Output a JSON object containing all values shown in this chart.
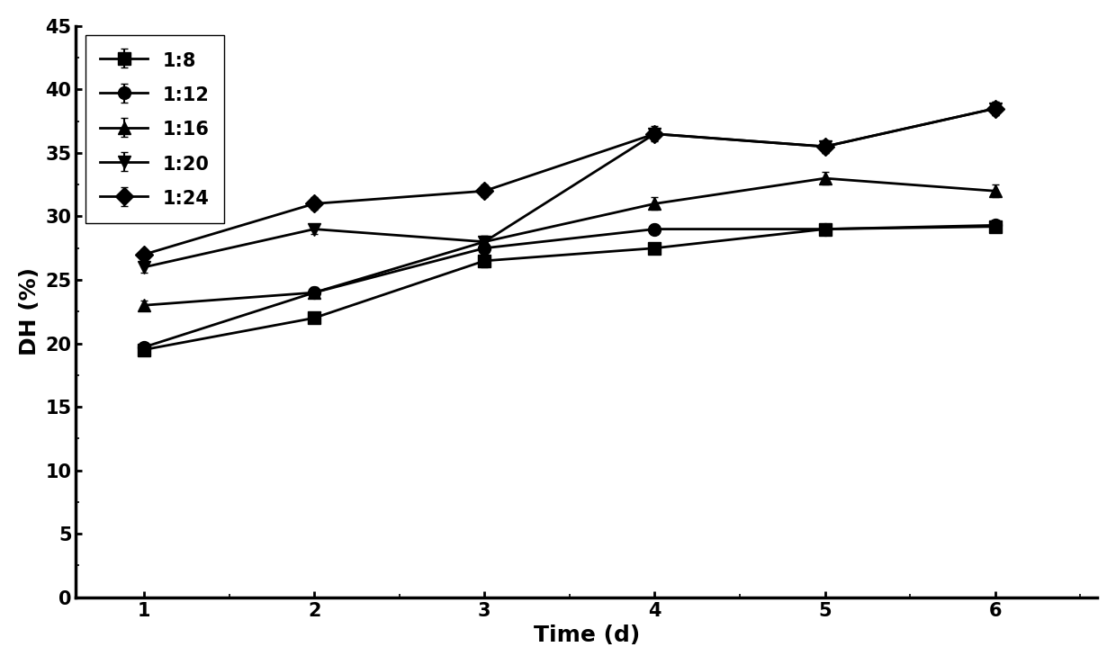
{
  "x": [
    1,
    2,
    3,
    4,
    5,
    6
  ],
  "series": [
    {
      "label": "1:8",
      "marker": "s",
      "values": [
        19.5,
        22.0,
        26.5,
        27.5,
        29.0,
        29.2
      ],
      "yerr": [
        0.3,
        0.4,
        0.5,
        0.4,
        0.4,
        0.4
      ]
    },
    {
      "label": "1:12",
      "marker": "o",
      "values": [
        19.7,
        24.0,
        27.5,
        29.0,
        29.0,
        29.3
      ],
      "yerr": [
        0.3,
        0.4,
        0.5,
        0.4,
        0.4,
        0.4
      ]
    },
    {
      "label": "1:16",
      "marker": "^",
      "values": [
        23.0,
        24.0,
        28.0,
        31.0,
        33.0,
        32.0
      ],
      "yerr": [
        0.4,
        0.4,
        0.5,
        0.5,
        0.5,
        0.5
      ]
    },
    {
      "label": "1:20",
      "marker": "v",
      "values": [
        26.0,
        29.0,
        28.0,
        36.5,
        35.5,
        38.5
      ],
      "yerr": [
        0.4,
        0.4,
        0.5,
        0.6,
        0.5,
        0.5
      ]
    },
    {
      "label": "1:24",
      "marker": "D",
      "values": [
        27.0,
        31.0,
        32.0,
        36.5,
        35.5,
        38.5
      ],
      "yerr": [
        0.4,
        0.5,
        0.5,
        0.5,
        0.5,
        0.5
      ]
    }
  ],
  "xlabel": "Time (d)",
  "ylabel": "DH (%)",
  "xlim": [
    0.6,
    6.6
  ],
  "ylim": [
    0,
    45
  ],
  "yticks": [
    0,
    5,
    10,
    15,
    20,
    25,
    30,
    35,
    40,
    45
  ],
  "xticks": [
    1,
    2,
    3,
    4,
    5,
    6
  ],
  "line_color": "#000000",
  "background_color": "#ffffff",
  "marker_size": 10,
  "line_width": 2.0,
  "capsize": 3,
  "legend_loc": "upper left",
  "legend_fontsize": 15,
  "axis_label_fontsize": 18,
  "tick_fontsize": 15
}
